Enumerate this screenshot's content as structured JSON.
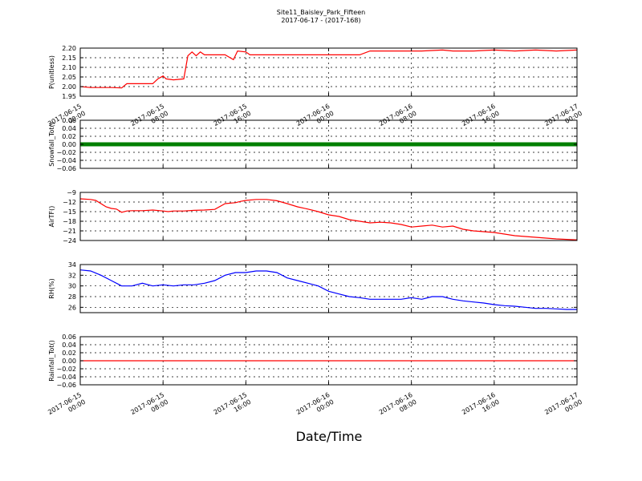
{
  "title": "Site11_Baisley_Park_Fifteen",
  "subtitle": "2017-06-17 - (2017-168)",
  "xlabel": "Date/Time",
  "chart_data": [
    {
      "type": "line",
      "ylabel": "P(unitless)",
      "color": "#ff0000",
      "grid": true,
      "xlim": [
        0,
        48
      ],
      "ylim": [
        1.95,
        2.2
      ],
      "yticks": [
        1.95,
        2.0,
        2.05,
        2.1,
        2.15,
        2.2
      ],
      "ytick_labels": [
        "1.95",
        "2.00",
        "2.05",
        "2.10",
        "2.15",
        "2.20"
      ],
      "x_tick_labels": [
        [
          "2017-06-15",
          "00:00"
        ],
        [
          "2017-06-15",
          "08:00"
        ],
        [
          "2017-06-15",
          "16:00"
        ],
        [
          "2017-06-16",
          "00:00"
        ],
        [
          "2017-06-16",
          "08:00"
        ],
        [
          "2017-06-16",
          "16:00"
        ],
        [
          "2017-06-17",
          "00:00"
        ]
      ],
      "points": [
        [
          0,
          2.0
        ],
        [
          1,
          1.995
        ],
        [
          2,
          1.995
        ],
        [
          3,
          1.995
        ],
        [
          4,
          1.993
        ],
        [
          4.5,
          2.015
        ],
        [
          5,
          2.015
        ],
        [
          6,
          2.015
        ],
        [
          7,
          2.015
        ],
        [
          7.5,
          2.04
        ],
        [
          8,
          2.055
        ],
        [
          8.3,
          2.04
        ],
        [
          9,
          2.035
        ],
        [
          10,
          2.04
        ],
        [
          10.4,
          2.16
        ],
        [
          10.8,
          2.18
        ],
        [
          11.2,
          2.16
        ],
        [
          11.6,
          2.18
        ],
        [
          12,
          2.165
        ],
        [
          13,
          2.165
        ],
        [
          14,
          2.165
        ],
        [
          14.8,
          2.14
        ],
        [
          15.2,
          2.185
        ],
        [
          16,
          2.18
        ],
        [
          16.4,
          2.165
        ],
        [
          17,
          2.165
        ],
        [
          18,
          2.165
        ],
        [
          19,
          2.165
        ],
        [
          20,
          2.165
        ],
        [
          22,
          2.165
        ],
        [
          24,
          2.165
        ],
        [
          27,
          2.165
        ],
        [
          28,
          2.185
        ],
        [
          30,
          2.185
        ],
        [
          33,
          2.185
        ],
        [
          35,
          2.19
        ],
        [
          36,
          2.185
        ],
        [
          38,
          2.185
        ],
        [
          40,
          2.19
        ],
        [
          42,
          2.185
        ],
        [
          44,
          2.19
        ],
        [
          46,
          2.185
        ],
        [
          48,
          2.19
        ]
      ]
    },
    {
      "type": "scatter",
      "ylabel": "Snowfall_Tot()",
      "color": "#007f00",
      "grid": true,
      "xlim": [
        0,
        48
      ],
      "ylim": [
        -0.06,
        0.06
      ],
      "yticks": [
        -0.06,
        -0.04,
        -0.02,
        0.0,
        0.02,
        0.04,
        0.06
      ],
      "ytick_labels": [
        "−0.06",
        "−0.04",
        "−0.02",
        "0.00",
        "0.02",
        "0.04",
        "0.06"
      ],
      "x_tick_labels": [],
      "points": [
        [
          0,
          0
        ],
        [
          48,
          0
        ]
      ]
    },
    {
      "type": "line",
      "ylabel": "AirTF()",
      "color": "#ff0000",
      "grid": true,
      "xlim": [
        0,
        48
      ],
      "ylim": [
        -24,
        -9
      ],
      "yticks": [
        -24,
        -21,
        -18,
        -15,
        -12,
        -9
      ],
      "ytick_labels": [
        "−24",
        "−21",
        "−18",
        "−15",
        "−12",
        "−9"
      ],
      "x_tick_labels": [],
      "points": [
        [
          0,
          -11
        ],
        [
          1,
          -11.2
        ],
        [
          1.5,
          -11.5
        ],
        [
          2,
          -12.5
        ],
        [
          2.5,
          -13.5
        ],
        [
          3,
          -14
        ],
        [
          3.5,
          -14.2
        ],
        [
          4,
          -15.2
        ],
        [
          4.5,
          -14.8
        ],
        [
          5,
          -14.7
        ],
        [
          6,
          -14.7
        ],
        [
          7,
          -14.5
        ],
        [
          8,
          -14.8
        ],
        [
          8.5,
          -15
        ],
        [
          9,
          -14.8
        ],
        [
          10,
          -14.8
        ],
        [
          11,
          -14.6
        ],
        [
          12,
          -14.5
        ],
        [
          13,
          -14.3
        ],
        [
          14,
          -12.5
        ],
        [
          15,
          -12.2
        ],
        [
          15.5,
          -11.8
        ],
        [
          16,
          -11.5
        ],
        [
          17,
          -11.2
        ],
        [
          18,
          -11.2
        ],
        [
          19,
          -11.6
        ],
        [
          20,
          -12.5
        ],
        [
          21,
          -13.5
        ],
        [
          22,
          -14.2
        ],
        [
          23,
          -15
        ],
        [
          24,
          -16
        ],
        [
          25,
          -16.5
        ],
        [
          26,
          -17.5
        ],
        [
          27,
          -18
        ],
        [
          28,
          -18.5
        ],
        [
          29,
          -18.3
        ],
        [
          30,
          -18.5
        ],
        [
          31,
          -19
        ],
        [
          32,
          -19.8
        ],
        [
          33,
          -19.5
        ],
        [
          34,
          -19.2
        ],
        [
          35,
          -19.8
        ],
        [
          36,
          -19.5
        ],
        [
          37,
          -20.5
        ],
        [
          38,
          -21
        ],
        [
          40,
          -21.5
        ],
        [
          42,
          -22.5
        ],
        [
          44,
          -23
        ],
        [
          46,
          -23.5
        ],
        [
          48,
          -23.8
        ]
      ]
    },
    {
      "type": "line",
      "ylabel": "RH(%)",
      "color": "#0000ff",
      "grid": true,
      "xlim": [
        0,
        48
      ],
      "ylim": [
        25,
        34
      ],
      "yticks": [
        26,
        28,
        30,
        32,
        34
      ],
      "ytick_labels": [
        "26",
        "28",
        "30",
        "32",
        "34"
      ],
      "x_tick_labels": [],
      "points": [
        [
          0,
          33
        ],
        [
          1,
          32.8
        ],
        [
          2,
          32
        ],
        [
          3,
          31
        ],
        [
          3.8,
          30.2
        ],
        [
          4,
          30
        ],
        [
          5,
          30
        ],
        [
          6,
          30.5
        ],
        [
          7,
          30
        ],
        [
          8,
          30.2
        ],
        [
          9,
          30
        ],
        [
          10,
          30.2
        ],
        [
          11,
          30.2
        ],
        [
          12,
          30.5
        ],
        [
          13,
          31
        ],
        [
          14,
          32
        ],
        [
          15,
          32.5
        ],
        [
          16,
          32.5
        ],
        [
          17,
          32.8
        ],
        [
          18,
          32.8
        ],
        [
          19,
          32.5
        ],
        [
          20,
          31.5
        ],
        [
          21,
          31
        ],
        [
          22,
          30.5
        ],
        [
          23,
          30
        ],
        [
          24,
          29
        ],
        [
          25,
          28.5
        ],
        [
          26,
          28
        ],
        [
          27,
          27.8
        ],
        [
          28,
          27.5
        ],
        [
          29,
          27.5
        ],
        [
          30,
          27.5
        ],
        [
          31,
          27.5
        ],
        [
          32,
          27.8
        ],
        [
          33,
          27.5
        ],
        [
          34,
          28
        ],
        [
          35,
          28
        ],
        [
          36,
          27.5
        ],
        [
          37,
          27.2
        ],
        [
          38,
          27
        ],
        [
          39,
          26.8
        ],
        [
          40,
          26.5
        ],
        [
          41,
          26.3
        ],
        [
          42,
          26.2
        ],
        [
          43,
          26
        ],
        [
          44,
          25.8
        ],
        [
          45,
          25.8
        ],
        [
          46,
          25.7
        ],
        [
          47,
          25.6
        ],
        [
          48,
          25.6
        ]
      ]
    },
    {
      "type": "line",
      "ylabel": "Rainfall_Tot()",
      "color": "#ff0000",
      "grid": true,
      "xlim": [
        0,
        48
      ],
      "ylim": [
        -0.06,
        0.06
      ],
      "yticks": [
        -0.06,
        -0.04,
        -0.02,
        0.0,
        0.02,
        0.04,
        0.06
      ],
      "ytick_labels": [
        "−0.06",
        "−0.04",
        "−0.02",
        "0.00",
        "0.02",
        "0.04",
        "0.06"
      ],
      "x_tick_labels": [
        [
          "2017-06-15",
          "00:00"
        ],
        [
          "2017-06-15",
          "08:00"
        ],
        [
          "2017-06-15",
          "16:00"
        ],
        [
          "2017-06-16",
          "00:00"
        ],
        [
          "2017-06-16",
          "08:00"
        ],
        [
          "2017-06-16",
          "16:00"
        ],
        [
          "2017-06-17",
          "00:00"
        ]
      ],
      "points": [
        [
          0,
          0
        ],
        [
          48,
          0
        ]
      ]
    }
  ]
}
